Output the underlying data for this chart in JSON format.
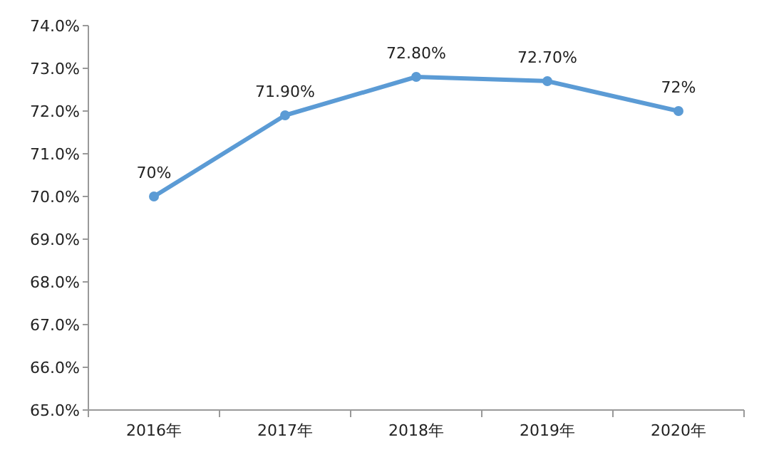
{
  "chart_data": {
    "type": "line",
    "categories": [
      "2016年",
      "2017年",
      "2018年",
      "2019年",
      "2020年"
    ],
    "series": [
      {
        "color": "#5b9bd5",
        "values": [
          70,
          71.9,
          72.8,
          72.7,
          72
        ],
        "value_labels": [
          "70%",
          "71.90%",
          "72.80%",
          "72.70%",
          "72%"
        ]
      }
    ],
    "ylim": [
      65,
      74
    ],
    "yticks": [
      {
        "value": 65,
        "label": "65.0%"
      },
      {
        "value": 66,
        "label": "66.0%"
      },
      {
        "value": 67,
        "label": "67.0%"
      },
      {
        "value": 68,
        "label": "68.0%"
      },
      {
        "value": 69,
        "label": "69.0%"
      },
      {
        "value": 70,
        "label": "70.0%"
      },
      {
        "value": 71,
        "label": "71.0%"
      },
      {
        "value": 72,
        "label": "72.0%"
      },
      {
        "value": 73,
        "label": "73.0%"
      },
      {
        "value": 74,
        "label": "74.0%"
      }
    ],
    "marker": "circle",
    "line_style": "solid"
  }
}
